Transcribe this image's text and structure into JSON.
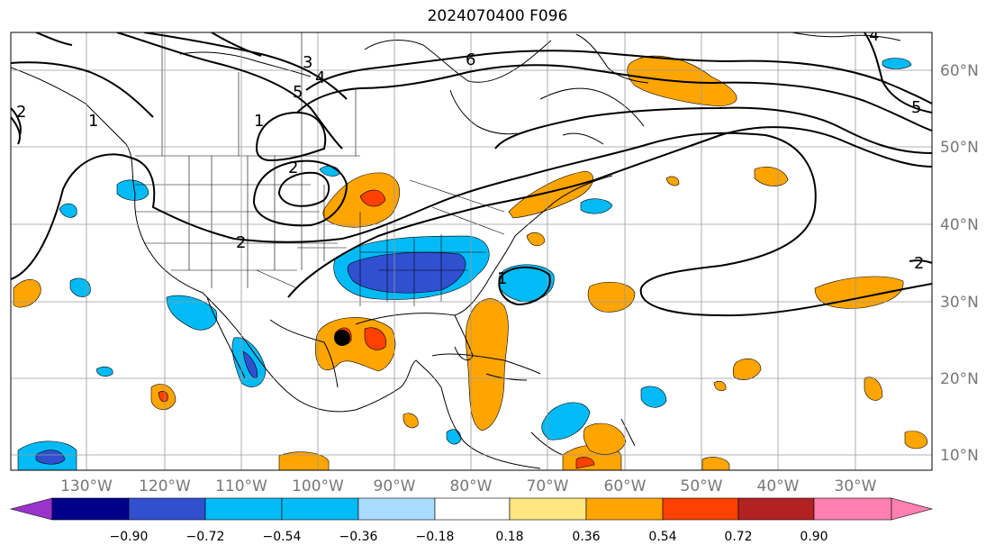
{
  "title": "2024070400 F096",
  "map": {
    "lon_labels": [
      "130°W",
      "120°W",
      "110°W",
      "100°W",
      "90°W",
      "80°W",
      "70°W",
      "60°W",
      "50°W",
      "40°W",
      "30°W"
    ],
    "lat_labels": [
      "60°N",
      "50°N",
      "40°N",
      "30°N",
      "20°N",
      "10°N"
    ],
    "contour_labels": [
      "1",
      "2",
      "2",
      "3",
      "4",
      "5",
      "6",
      "4",
      "5",
      "2",
      "1",
      "1",
      "2"
    ],
    "marker": "storm-center-dot"
  },
  "colorbar": {
    "ticks": [
      "−0.90",
      "−0.72",
      "−0.54",
      "−0.36",
      "−0.18",
      "0.18",
      "0.36",
      "0.54",
      "0.72",
      "0.90"
    ],
    "colors": [
      "#9933cc",
      "#00008b",
      "#3050d0",
      "#00bbf5",
      "#aadcff",
      "#ffffff",
      "#ffe680",
      "#ffa500",
      "#ff4000",
      "#b22222",
      "#ff80b0"
    ]
  }
}
